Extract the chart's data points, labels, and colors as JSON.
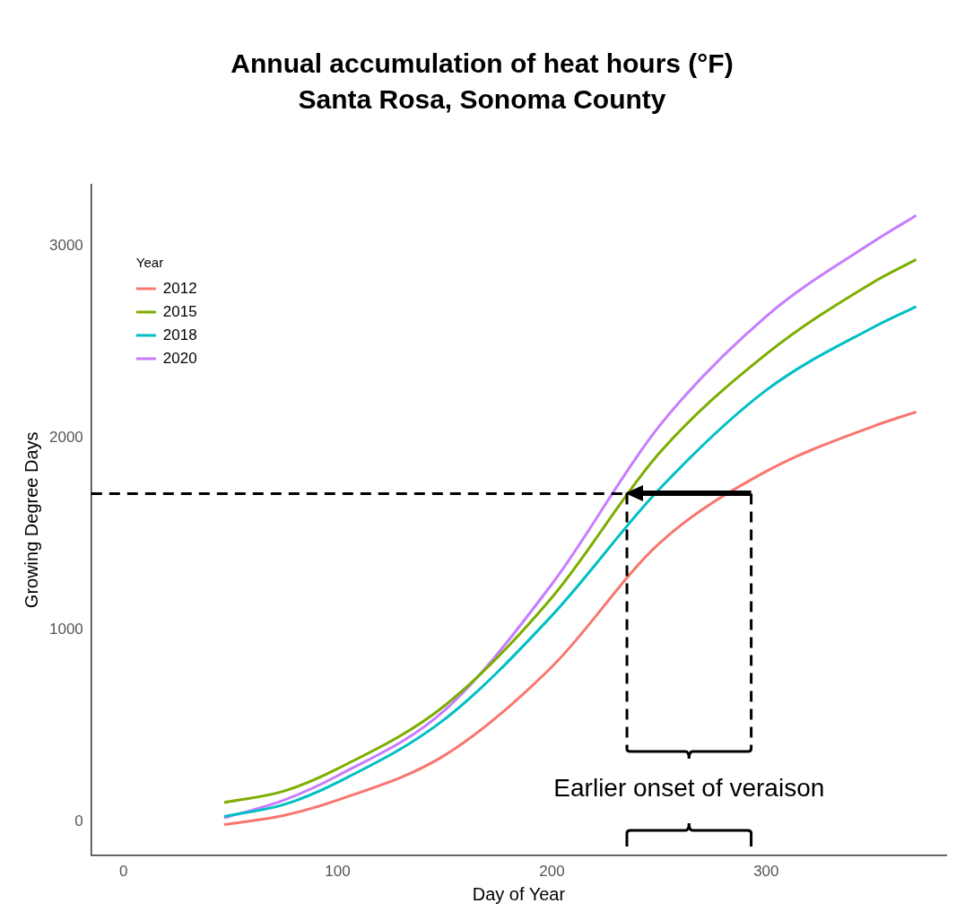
{
  "chart_data": {
    "type": "line",
    "title": "Annual accumulation of heat hours (°F)",
    "subtitle": "Santa Rosa, Sonoma County",
    "xlabel": "Day of Year",
    "ylabel": "Growing Degree Days",
    "legend_title": "Year",
    "legend": "top left",
    "grid": false,
    "marker": "none",
    "x": [
      47,
      75,
      100,
      150,
      200,
      250,
      300,
      350,
      370
    ],
    "xlim": [
      -15,
      384
    ],
    "xticks": [
      0,
      100,
      200,
      300
    ],
    "ylim": [
      -174,
      3320
    ],
    "yticks": [
      0,
      1000,
      2000,
      3000
    ],
    "series": [
      {
        "name": "2012",
        "color": "#f8766d",
        "values": [
          -15,
          33,
          113,
          347,
          808,
          1450,
          1826,
          2061,
          2136
        ]
      },
      {
        "name": "2015",
        "color": "#7cae00",
        "values": [
          100,
          160,
          277,
          606,
          1169,
          1920,
          2437,
          2812,
          2930
        ]
      },
      {
        "name": "2018",
        "color": "#00bfc4",
        "values": [
          28,
          90,
          206,
          535,
          1075,
          1732,
          2249,
          2577,
          2685
        ]
      },
      {
        "name": "2020",
        "color": "#c77cff",
        "values": [
          20,
          113,
          240,
          582,
          1239,
          2061,
          2634,
          3023,
          3160
        ]
      }
    ],
    "ref_lines": [
      {
        "axis": "y",
        "value": 1710,
        "line_style": "dashed",
        "color": "#000000"
      },
      {
        "axis": "x",
        "value": 235,
        "line_style": "dashed",
        "color": "#000000"
      },
      {
        "axis": "x",
        "value": 293,
        "line_style": "dashed",
        "color": "#000000"
      }
    ],
    "annotations": [
      "Earlier onset of veraison"
    ]
  }
}
